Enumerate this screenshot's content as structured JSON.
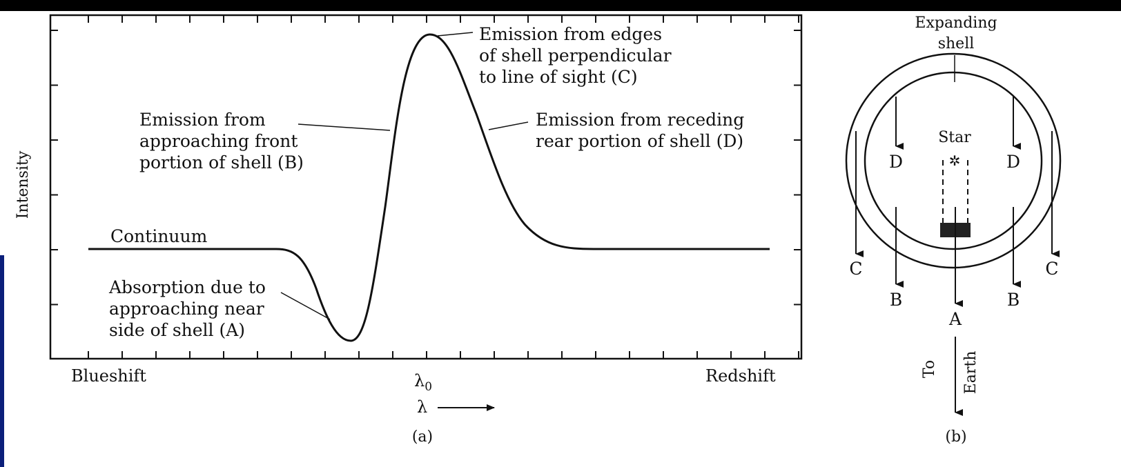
{
  "panel_a": {
    "ylabel": "Intensity",
    "continuum": "Continuum",
    "absorption": [
      "Absorption due to",
      "approaching near",
      "side of shell (A)"
    ],
    "emission_front": [
      "Emission from",
      "approaching front",
      "portion of shell (B)"
    ],
    "emission_edges": [
      "Emission from edges",
      "of shell perpendicular",
      "to line of sight (C)"
    ],
    "emission_rear": [
      "Emission from receding",
      "rear portion of shell (D)"
    ],
    "blueshift": "Blueshift",
    "redshift": "Redshift",
    "lambda0": "λ",
    "lambda0_sub": "0",
    "lambda": "λ",
    "caption": "(a)"
  },
  "panel_b": {
    "title_line1": "Expanding",
    "title_line2": "shell",
    "star": "Star",
    "d_left": "D",
    "d_right": "D",
    "c_left": "C",
    "c_right": "C",
    "b_left": "B",
    "b_right": "B",
    "a": "A",
    "to": "To",
    "earth": "Earth",
    "caption": "(b)"
  },
  "colors": {
    "outer_background": "#000000",
    "figure_background": "#ffffff",
    "ink": "#111111"
  }
}
